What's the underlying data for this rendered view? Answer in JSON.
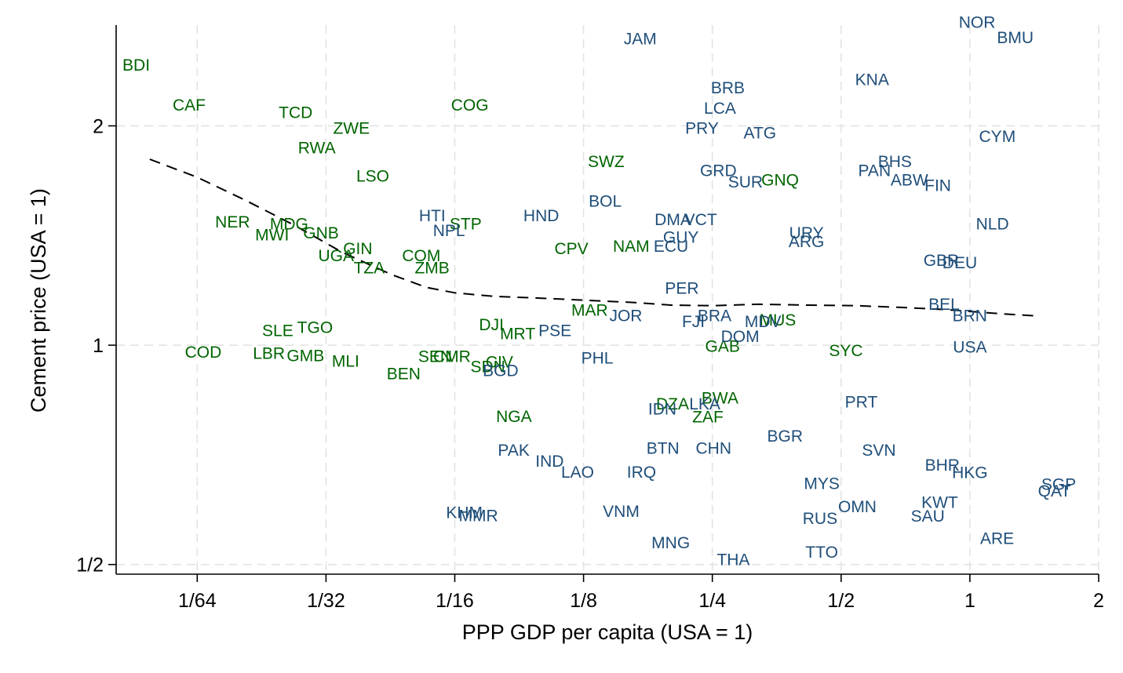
{
  "chart_data": {
    "type": "scatter",
    "xlabel": "PPP GDP per capita (USA = 1)",
    "ylabel": "Cement price (USA = 1)",
    "x_scale": "log2",
    "y_scale": "log2",
    "xlim": [
      0.0101,
      2.0
    ],
    "ylim": [
      0.485,
      2.75
    ],
    "x_ticks": [
      {
        "value": 0.015625,
        "label": "1/64"
      },
      {
        "value": 0.03125,
        "label": "1/32"
      },
      {
        "value": 0.0625,
        "label": "1/16"
      },
      {
        "value": 0.125,
        "label": "1/8"
      },
      {
        "value": 0.25,
        "label": "1/4"
      },
      {
        "value": 0.5,
        "label": "1/2"
      },
      {
        "value": 1,
        "label": "1"
      },
      {
        "value": 2,
        "label": "2"
      }
    ],
    "y_ticks": [
      {
        "value": 0.5,
        "label": "1/2"
      },
      {
        "value": 1,
        "label": "1"
      },
      {
        "value": 2,
        "label": "2"
      }
    ],
    "grid": true,
    "colors": {
      "green": "#006400",
      "blue": "#1f4e79",
      "fit": "#000000"
    },
    "points": [
      {
        "label": "BDI",
        "x": 0.01125,
        "y": 2.43,
        "group": "green"
      },
      {
        "label": "CAF",
        "x": 0.01496,
        "y": 2.14,
        "group": "green"
      },
      {
        "label": "TCD",
        "x": 0.02654,
        "y": 2.09,
        "group": "green"
      },
      {
        "label": "ZWE",
        "x": 0.03583,
        "y": 1.99,
        "group": "green"
      },
      {
        "label": "RWA",
        "x": 0.02974,
        "y": 1.87,
        "group": "green"
      },
      {
        "label": "LSO",
        "x": 0.04019,
        "y": 1.71,
        "group": "green"
      },
      {
        "label": "COG",
        "x": 0.06777,
        "y": 2.14,
        "group": "green"
      },
      {
        "label": "SWZ",
        "x": 0.14116,
        "y": 1.79,
        "group": "green"
      },
      {
        "label": "NER",
        "x": 0.0189,
        "y": 1.48,
        "group": "green"
      },
      {
        "label": "MDG",
        "x": 0.02562,
        "y": 1.47,
        "group": "green"
      },
      {
        "label": "MWI",
        "x": 0.02338,
        "y": 1.42,
        "group": "green"
      },
      {
        "label": "GNB",
        "x": 0.03042,
        "y": 1.43,
        "group": "green"
      },
      {
        "label": "GIN",
        "x": 0.03708,
        "y": 1.36,
        "group": "green"
      },
      {
        "label": "UGA",
        "x": 0.03299,
        "y": 1.33,
        "group": "green"
      },
      {
        "label": "TZA",
        "x": 0.03943,
        "y": 1.28,
        "group": "green"
      },
      {
        "label": "COM",
        "x": 0.05219,
        "y": 1.33,
        "group": "green"
      },
      {
        "label": "ZMB",
        "x": 0.05533,
        "y": 1.28,
        "group": "green"
      },
      {
        "label": "STP",
        "x": 0.06625,
        "y": 1.47,
        "group": "green"
      },
      {
        "label": "CPV",
        "x": 0.11707,
        "y": 1.36,
        "group": "green"
      },
      {
        "label": "NAM",
        "x": 0.16153,
        "y": 1.37,
        "group": "green"
      },
      {
        "label": "MAR",
        "x": 0.12915,
        "y": 1.12,
        "group": "green"
      },
      {
        "label": "DJI",
        "x": 0.07612,
        "y": 1.07,
        "group": "green"
      },
      {
        "label": "MRT",
        "x": 0.08767,
        "y": 1.04,
        "group": "green"
      },
      {
        "label": "SLE",
        "x": 0.0241,
        "y": 1.05,
        "group": "green"
      },
      {
        "label": "TGO",
        "x": 0.02946,
        "y": 1.06,
        "group": "green"
      },
      {
        "label": "COD",
        "x": 0.01614,
        "y": 0.98,
        "group": "green"
      },
      {
        "label": "LBR",
        "x": 0.02298,
        "y": 0.977,
        "group": "green"
      },
      {
        "label": "GMB",
        "x": 0.02799,
        "y": 0.97,
        "group": "green"
      },
      {
        "label": "SEN",
        "x": 0.05622,
        "y": 0.967,
        "group": "green"
      },
      {
        "label": "CMR",
        "x": 0.06156,
        "y": 0.967,
        "group": "green"
      },
      {
        "label": "CIV",
        "x": 0.07948,
        "y": 0.951,
        "group": "green"
      },
      {
        "label": "SDN",
        "x": 0.07467,
        "y": 0.937,
        "group": "green"
      },
      {
        "label": "MLI",
        "x": 0.03473,
        "y": 0.953,
        "group": "green"
      },
      {
        "label": "BEN",
        "x": 0.04746,
        "y": 0.916,
        "group": "green"
      },
      {
        "label": "NGA",
        "x": 0.08593,
        "y": 0.8,
        "group": "green"
      },
      {
        "label": "DZA",
        "x": 0.20178,
        "y": 0.833,
        "group": "green"
      },
      {
        "label": "BWA",
        "x": 0.26053,
        "y": 0.848,
        "group": "green"
      },
      {
        "label": "ZAF",
        "x": 0.24402,
        "y": 0.799,
        "group": "green"
      },
      {
        "label": "GAB",
        "x": 0.2641,
        "y": 0.999,
        "group": "green"
      },
      {
        "label": "MUS",
        "x": 0.3553,
        "y": 1.085,
        "group": "green"
      },
      {
        "label": "SYC",
        "x": 0.51322,
        "y": 0.985,
        "group": "green"
      },
      {
        "label": "GNQ",
        "x": 0.36009,
        "y": 1.69,
        "group": "green"
      },
      {
        "label": "JAM",
        "x": 0.16957,
        "y": 2.64,
        "group": "blue"
      },
      {
        "label": "BRB",
        "x": 0.27178,
        "y": 2.26,
        "group": "blue"
      },
      {
        "label": "LCA",
        "x": 0.26052,
        "y": 2.12,
        "group": "blue"
      },
      {
        "label": "PRY",
        "x": 0.23643,
        "y": 1.99,
        "group": "blue"
      },
      {
        "label": "ATG",
        "x": 0.32299,
        "y": 1.96,
        "group": "blue"
      },
      {
        "label": "KNA",
        "x": 0.59065,
        "y": 2.32,
        "group": "blue"
      },
      {
        "label": "NOR",
        "x": 1.03948,
        "y": 2.78,
        "group": "blue"
      },
      {
        "label": "BMU",
        "x": 1.27658,
        "y": 2.65,
        "group": "blue"
      },
      {
        "label": "CYM",
        "x": 1.1591,
        "y": 1.94,
        "group": "blue"
      },
      {
        "label": "BHS",
        "x": 0.66778,
        "y": 1.79,
        "group": "blue"
      },
      {
        "label": "PAN",
        "x": 0.59834,
        "y": 1.74,
        "group": "blue"
      },
      {
        "label": "ABW",
        "x": 0.72195,
        "y": 1.69,
        "group": "blue"
      },
      {
        "label": "FIN",
        "x": 0.84154,
        "y": 1.66,
        "group": "blue"
      },
      {
        "label": "GRD",
        "x": 0.25817,
        "y": 1.74,
        "group": "blue"
      },
      {
        "label": "SUR",
        "x": 0.2988,
        "y": 1.68,
        "group": "blue"
      },
      {
        "label": "BOL",
        "x": 0.14044,
        "y": 1.58,
        "group": "blue"
      },
      {
        "label": "HND",
        "x": 0.09953,
        "y": 1.51,
        "group": "blue"
      },
      {
        "label": "HTI",
        "x": 0.05537,
        "y": 1.51,
        "group": "blue"
      },
      {
        "label": "NPL",
        "x": 0.0606,
        "y": 1.44,
        "group": "blue"
      },
      {
        "label": "DMA",
        "x": 0.20224,
        "y": 1.49,
        "group": "blue"
      },
      {
        "label": "VCT",
        "x": 0.23463,
        "y": 1.49,
        "group": "blue"
      },
      {
        "label": "GUY",
        "x": 0.21112,
        "y": 1.41,
        "group": "blue"
      },
      {
        "label": "ECU",
        "x": 0.2001,
        "y": 1.37,
        "group": "blue"
      },
      {
        "label": "URY",
        "x": 0.41493,
        "y": 1.43,
        "group": "blue"
      },
      {
        "label": "ARG",
        "x": 0.41493,
        "y": 1.39,
        "group": "blue"
      },
      {
        "label": "NLD",
        "x": 1.12917,
        "y": 1.47,
        "group": "blue"
      },
      {
        "label": "GBR",
        "x": 0.85732,
        "y": 1.31,
        "group": "blue"
      },
      {
        "label": "DEU",
        "x": 0.94689,
        "y": 1.3,
        "group": "blue"
      },
      {
        "label": "BEL",
        "x": 0.87016,
        "y": 1.14,
        "group": "blue"
      },
      {
        "label": "BRN",
        "x": 0.99958,
        "y": 1.1,
        "group": "blue"
      },
      {
        "label": "USA",
        "x": 1.0,
        "y": 0.997,
        "group": "blue"
      },
      {
        "label": "PER",
        "x": 0.21223,
        "y": 1.2,
        "group": "blue"
      },
      {
        "label": "JOR",
        "x": 0.15692,
        "y": 1.1,
        "group": "blue"
      },
      {
        "label": "PSE",
        "x": 0.10716,
        "y": 1.05,
        "group": "blue"
      },
      {
        "label": "FJI",
        "x": 0.22576,
        "y": 1.08,
        "group": "blue"
      },
      {
        "label": "BRA",
        "x": 0.25289,
        "y": 1.1,
        "group": "blue"
      },
      {
        "label": "DOM",
        "x": 0.29028,
        "y": 1.03,
        "group": "blue"
      },
      {
        "label": "MDV",
        "x": 0.32825,
        "y": 1.08,
        "group": "blue"
      },
      {
        "label": "PHL",
        "x": 0.13453,
        "y": 0.962,
        "group": "blue"
      },
      {
        "label": "BGD",
        "x": 0.07999,
        "y": 0.925,
        "group": "blue"
      },
      {
        "label": "IDN",
        "x": 0.19101,
        "y": 0.819,
        "group": "blue"
      },
      {
        "label": "LKA",
        "x": 0.24001,
        "y": 0.833,
        "group": "blue"
      },
      {
        "label": "PRT",
        "x": 0.5573,
        "y": 0.838,
        "group": "blue"
      },
      {
        "label": "BGR",
        "x": 0.36963,
        "y": 0.752,
        "group": "blue"
      },
      {
        "label": "BTN",
        "x": 0.19158,
        "y": 0.724,
        "group": "blue"
      },
      {
        "label": "CHN",
        "x": 0.25167,
        "y": 0.724,
        "group": "blue"
      },
      {
        "label": "SVN",
        "x": 0.61283,
        "y": 0.719,
        "group": "blue"
      },
      {
        "label": "PAK",
        "x": 0.08585,
        "y": 0.719,
        "group": "blue"
      },
      {
        "label": "IND",
        "x": 0.10413,
        "y": 0.695,
        "group": "blue"
      },
      {
        "label": "LAO",
        "x": 0.12103,
        "y": 0.671,
        "group": "blue"
      },
      {
        "label": "IRQ",
        "x": 0.17073,
        "y": 0.671,
        "group": "blue"
      },
      {
        "label": "BHR",
        "x": 0.86223,
        "y": 0.686,
        "group": "blue"
      },
      {
        "label": "HKG",
        "x": 0.99991,
        "y": 0.67,
        "group": "blue"
      },
      {
        "label": "SGP",
        "x": 1.61262,
        "y": 0.646,
        "group": "blue"
      },
      {
        "label": "QAT",
        "x": 1.57519,
        "y": 0.632,
        "group": "blue"
      },
      {
        "label": "MYS",
        "x": 0.45048,
        "y": 0.647,
        "group": "blue"
      },
      {
        "label": "KWT",
        "x": 0.8501,
        "y": 0.61,
        "group": "blue"
      },
      {
        "label": "OMN",
        "x": 0.54567,
        "y": 0.602,
        "group": "blue"
      },
      {
        "label": "SAU",
        "x": 0.79728,
        "y": 0.584,
        "group": "blue"
      },
      {
        "label": "RUS",
        "x": 0.44633,
        "y": 0.58,
        "group": "blue"
      },
      {
        "label": "ARE",
        "x": 1.1577,
        "y": 0.544,
        "group": "blue"
      },
      {
        "label": "KHM",
        "x": 0.06581,
        "y": 0.591,
        "group": "blue"
      },
      {
        "label": "MMR",
        "x": 0.07097,
        "y": 0.585,
        "group": "blue"
      },
      {
        "label": "VNM",
        "x": 0.15302,
        "y": 0.593,
        "group": "blue"
      },
      {
        "label": "MNG",
        "x": 0.19983,
        "y": 0.537,
        "group": "blue"
      },
      {
        "label": "THA",
        "x": 0.27989,
        "y": 0.509,
        "group": "blue"
      },
      {
        "label": "TTO",
        "x": 0.45049,
        "y": 0.521,
        "group": "blue"
      }
    ],
    "fit_line": {
      "x": [
        0.0121,
        0.015625,
        0.0203,
        0.0264,
        0.0342,
        0.0445,
        0.0537,
        0.0625,
        0.077,
        0.1,
        0.125,
        0.162,
        0.2,
        0.25,
        0.32,
        0.42,
        0.54,
        0.69,
        0.88,
        1.14,
        1.46
      ],
      "y": [
        1.8,
        1.7,
        1.58,
        1.46,
        1.34,
        1.25,
        1.2,
        1.18,
        1.167,
        1.16,
        1.153,
        1.145,
        1.135,
        1.133,
        1.138,
        1.135,
        1.133,
        1.127,
        1.119,
        1.106,
        1.096
      ]
    }
  }
}
